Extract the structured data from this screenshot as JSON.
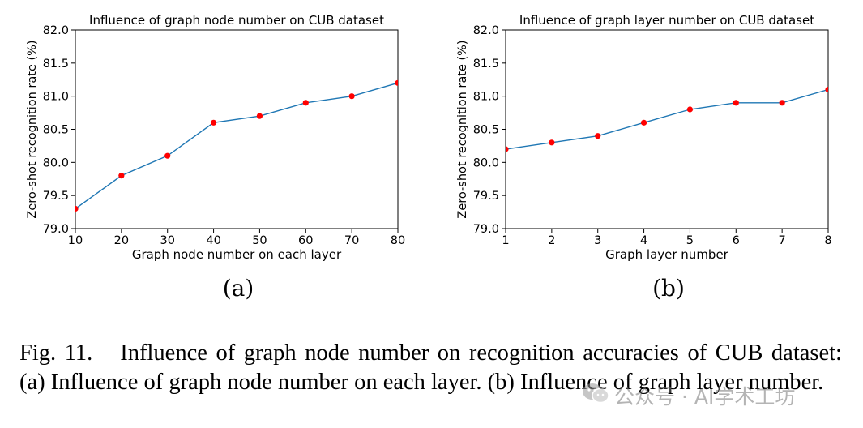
{
  "chart_data": [
    {
      "type": "line",
      "title": "Influence of graph node number on CUB dataset",
      "xlabel": "Graph node number on each layer",
      "ylabel": "Zero-shot recognition rate (%)",
      "x": [
        10,
        20,
        30,
        40,
        50,
        60,
        70,
        80
      ],
      "values": [
        79.3,
        79.8,
        80.1,
        80.6,
        80.7,
        80.9,
        81.0,
        81.2
      ],
      "xlim": [
        10,
        80
      ],
      "ylim": [
        79.0,
        82.0
      ],
      "xticks": [
        "10",
        "20",
        "30",
        "40",
        "50",
        "60",
        "70",
        "80"
      ],
      "yticks": [
        "79.0",
        "79.5",
        "80.0",
        "80.5",
        "81.0",
        "81.5",
        "82.0"
      ],
      "line_color": "#1f77b4",
      "marker_color": "#ff0000",
      "grid": false
    },
    {
      "type": "line",
      "title": "Influence of graph layer number on CUB dataset",
      "xlabel": "Graph layer number",
      "ylabel": "Zero-shot recognition rate (%)",
      "x": [
        1,
        2,
        3,
        4,
        5,
        6,
        7,
        8
      ],
      "values": [
        80.2,
        80.3,
        80.4,
        80.6,
        80.8,
        80.9,
        80.9,
        81.1
      ],
      "xlim": [
        1,
        8
      ],
      "ylim": [
        79.0,
        82.0
      ],
      "xticks": [
        "1",
        "2",
        "3",
        "4",
        "5",
        "6",
        "7",
        "8"
      ],
      "yticks": [
        "79.0",
        "79.5",
        "80.0",
        "80.5",
        "81.0",
        "81.5",
        "82.0"
      ],
      "line_color": "#1f77b4",
      "marker_color": "#ff0000",
      "grid": false
    }
  ],
  "panels": [
    "(a)",
    "(b)"
  ],
  "caption": {
    "label": "Fig. 11.",
    "text": "Influence of graph node number on recognition accuracies of CUB dataset: (a) Influence of graph node number on each layer. (b) Influence of graph layer number."
  },
  "watermark": "公众号 · AI学术工坊"
}
